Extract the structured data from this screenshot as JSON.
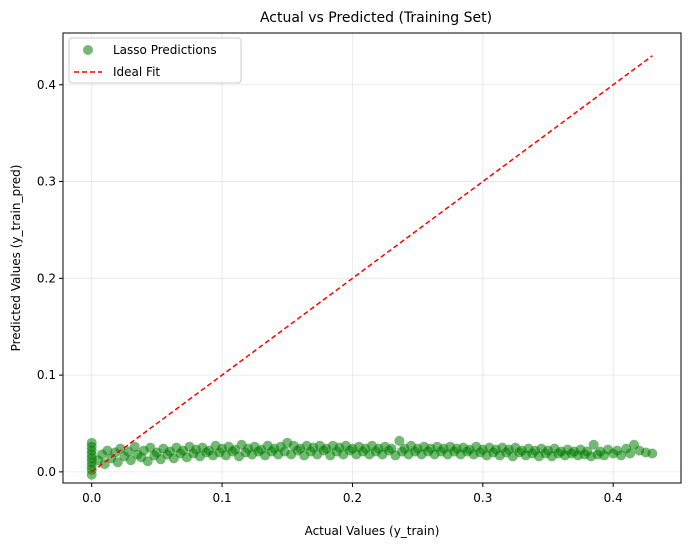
{
  "chart_data": {
    "type": "scatter",
    "title": "Actual vs Predicted (Training Set)",
    "xlabel": "Actual Values (y_train)",
    "ylabel": "Predicted Values (y_train_pred)",
    "xlim": [
      -0.022,
      0.452
    ],
    "ylim": [
      -0.0115,
      0.4535
    ],
    "x_ticks": [
      0.0,
      0.1,
      0.2,
      0.3,
      0.4
    ],
    "x_tick_labels": [
      "0.0",
      "0.1",
      "0.2",
      "0.3",
      "0.4"
    ],
    "y_ticks": [
      0.0,
      0.1,
      0.2,
      0.3,
      0.4
    ],
    "y_tick_labels": [
      "0.0",
      "0.1",
      "0.2",
      "0.3",
      "0.4"
    ],
    "grid": true,
    "legend_position": "upper-left",
    "series": [
      {
        "name": "Lasso Predictions",
        "kind": "scatter",
        "color": "#008000",
        "alpha": 0.55,
        "points": [
          [
            0.0,
            -0.003
          ],
          [
            0.0,
            0.002
          ],
          [
            0.0,
            0.006
          ],
          [
            0.0,
            0.01
          ],
          [
            0.0,
            0.014
          ],
          [
            0.0,
            0.018
          ],
          [
            0.0,
            0.022
          ],
          [
            0.0,
            0.026
          ],
          [
            0.0,
            0.03
          ],
          [
            0.005,
            0.012
          ],
          [
            0.008,
            0.018
          ],
          [
            0.01,
            0.008
          ],
          [
            0.012,
            0.022
          ],
          [
            0.015,
            0.014
          ],
          [
            0.018,
            0.02
          ],
          [
            0.02,
            0.01
          ],
          [
            0.022,
            0.024
          ],
          [
            0.025,
            0.016
          ],
          [
            0.028,
            0.021
          ],
          [
            0.03,
            0.012
          ],
          [
            0.033,
            0.026
          ],
          [
            0.035,
            0.018
          ],
          [
            0.038,
            0.015
          ],
          [
            0.04,
            0.022
          ],
          [
            0.043,
            0.011
          ],
          [
            0.045,
            0.025
          ],
          [
            0.048,
            0.017
          ],
          [
            0.05,
            0.02
          ],
          [
            0.053,
            0.013
          ],
          [
            0.055,
            0.024
          ],
          [
            0.058,
            0.018
          ],
          [
            0.06,
            0.021
          ],
          [
            0.063,
            0.014
          ],
          [
            0.065,
            0.025
          ],
          [
            0.068,
            0.019
          ],
          [
            0.07,
            0.022
          ],
          [
            0.073,
            0.015
          ],
          [
            0.075,
            0.026
          ],
          [
            0.078,
            0.019
          ],
          [
            0.08,
            0.023
          ],
          [
            0.083,
            0.016
          ],
          [
            0.085,
            0.025
          ],
          [
            0.088,
            0.02
          ],
          [
            0.09,
            0.022
          ],
          [
            0.093,
            0.017
          ],
          [
            0.095,
            0.027
          ],
          [
            0.098,
            0.02
          ],
          [
            0.1,
            0.024
          ],
          [
            0.103,
            0.017
          ],
          [
            0.105,
            0.026
          ],
          [
            0.108,
            0.021
          ],
          [
            0.11,
            0.023
          ],
          [
            0.113,
            0.016
          ],
          [
            0.115,
            0.028
          ],
          [
            0.118,
            0.02
          ],
          [
            0.12,
            0.024
          ],
          [
            0.123,
            0.018
          ],
          [
            0.125,
            0.026
          ],
          [
            0.128,
            0.021
          ],
          [
            0.13,
            0.023
          ],
          [
            0.133,
            0.017
          ],
          [
            0.135,
            0.027
          ],
          [
            0.138,
            0.021
          ],
          [
            0.14,
            0.024
          ],
          [
            0.143,
            0.018
          ],
          [
            0.145,
            0.026
          ],
          [
            0.148,
            0.021
          ],
          [
            0.15,
            0.03
          ],
          [
            0.153,
            0.018
          ],
          [
            0.155,
            0.027
          ],
          [
            0.158,
            0.022
          ],
          [
            0.16,
            0.024
          ],
          [
            0.163,
            0.017
          ],
          [
            0.165,
            0.027
          ],
          [
            0.168,
            0.021
          ],
          [
            0.17,
            0.025
          ],
          [
            0.173,
            0.018
          ],
          [
            0.175,
            0.027
          ],
          [
            0.178,
            0.022
          ],
          [
            0.18,
            0.024
          ],
          [
            0.183,
            0.017
          ],
          [
            0.185,
            0.027
          ],
          [
            0.188,
            0.021
          ],
          [
            0.19,
            0.025
          ],
          [
            0.193,
            0.018
          ],
          [
            0.195,
            0.027
          ],
          [
            0.198,
            0.022
          ],
          [
            0.2,
            0.024
          ],
          [
            0.203,
            0.018
          ],
          [
            0.205,
            0.026
          ],
          [
            0.208,
            0.021
          ],
          [
            0.21,
            0.024
          ],
          [
            0.213,
            0.018
          ],
          [
            0.215,
            0.027
          ],
          [
            0.218,
            0.021
          ],
          [
            0.22,
            0.024
          ],
          [
            0.223,
            0.018
          ],
          [
            0.225,
            0.026
          ],
          [
            0.228,
            0.022
          ],
          [
            0.23,
            0.024
          ],
          [
            0.233,
            0.017
          ],
          [
            0.236,
            0.032
          ],
          [
            0.238,
            0.021
          ],
          [
            0.24,
            0.024
          ],
          [
            0.243,
            0.018
          ],
          [
            0.245,
            0.027
          ],
          [
            0.248,
            0.021
          ],
          [
            0.25,
            0.024
          ],
          [
            0.253,
            0.018
          ],
          [
            0.255,
            0.026
          ],
          [
            0.258,
            0.021
          ],
          [
            0.26,
            0.024
          ],
          [
            0.263,
            0.018
          ],
          [
            0.265,
            0.026
          ],
          [
            0.268,
            0.021
          ],
          [
            0.27,
            0.024
          ],
          [
            0.273,
            0.018
          ],
          [
            0.275,
            0.026
          ],
          [
            0.278,
            0.021
          ],
          [
            0.28,
            0.024
          ],
          [
            0.283,
            0.018
          ],
          [
            0.285,
            0.025
          ],
          [
            0.288,
            0.021
          ],
          [
            0.29,
            0.023
          ],
          [
            0.293,
            0.018
          ],
          [
            0.295,
            0.026
          ],
          [
            0.298,
            0.02
          ],
          [
            0.3,
            0.023
          ],
          [
            0.303,
            0.017
          ],
          [
            0.305,
            0.025
          ],
          [
            0.308,
            0.02
          ],
          [
            0.31,
            0.023
          ],
          [
            0.313,
            0.017
          ],
          [
            0.315,
            0.025
          ],
          [
            0.318,
            0.02
          ],
          [
            0.32,
            0.023
          ],
          [
            0.323,
            0.016
          ],
          [
            0.325,
            0.025
          ],
          [
            0.328,
            0.02
          ],
          [
            0.33,
            0.022
          ],
          [
            0.333,
            0.017
          ],
          [
            0.335,
            0.024
          ],
          [
            0.338,
            0.019
          ],
          [
            0.34,
            0.022
          ],
          [
            0.343,
            0.016
          ],
          [
            0.345,
            0.024
          ],
          [
            0.348,
            0.019
          ],
          [
            0.35,
            0.022
          ],
          [
            0.353,
            0.016
          ],
          [
            0.355,
            0.024
          ],
          [
            0.358,
            0.019
          ],
          [
            0.36,
            0.021
          ],
          [
            0.363,
            0.017
          ],
          [
            0.365,
            0.023
          ],
          [
            0.368,
            0.019
          ],
          [
            0.37,
            0.021
          ],
          [
            0.373,
            0.017
          ],
          [
            0.375,
            0.023
          ],
          [
            0.378,
            0.018
          ],
          [
            0.38,
            0.021
          ],
          [
            0.383,
            0.016
          ],
          [
            0.385,
            0.028
          ],
          [
            0.388,
            0.018
          ],
          [
            0.39,
            0.021
          ],
          [
            0.393,
            0.017
          ],
          [
            0.396,
            0.023
          ],
          [
            0.4,
            0.019
          ],
          [
            0.403,
            0.022
          ],
          [
            0.406,
            0.017
          ],
          [
            0.41,
            0.024
          ],
          [
            0.413,
            0.019
          ],
          [
            0.416,
            0.028
          ],
          [
            0.42,
            0.022
          ],
          [
            0.425,
            0.02
          ],
          [
            0.43,
            0.019
          ]
        ]
      },
      {
        "name": "Ideal Fit",
        "kind": "line",
        "style": "dashed",
        "color": "#ff0000",
        "points": [
          [
            0.0,
            0.0
          ],
          [
            0.43,
            0.43
          ]
        ]
      }
    ]
  }
}
